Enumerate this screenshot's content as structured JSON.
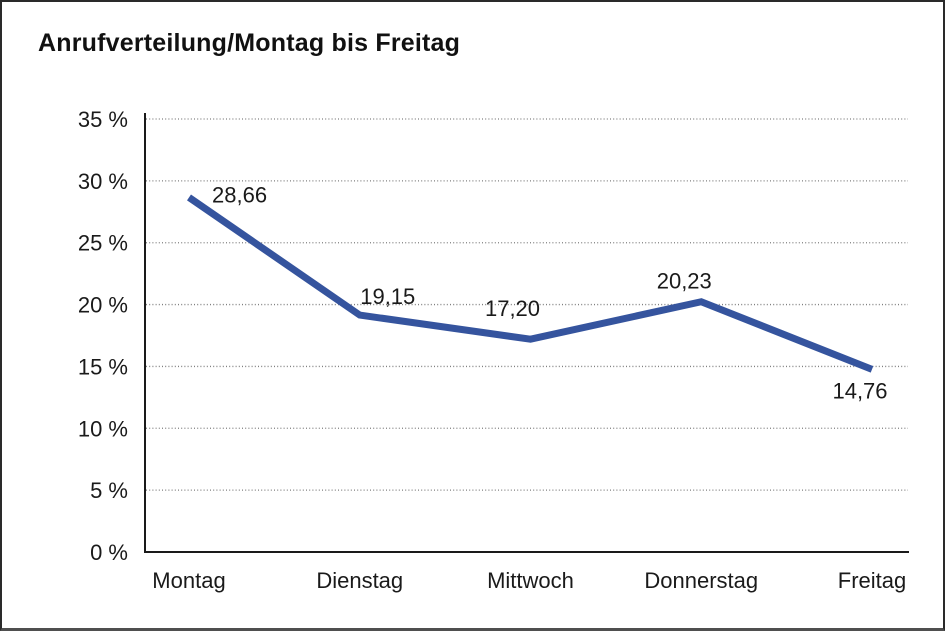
{
  "chart_data": {
    "type": "line",
    "title": "Anrufverteilung/Montag bis Freitag",
    "categories": [
      "Montag",
      "Dienstag",
      "Mittwoch",
      "Donnerstag",
      "Freitag"
    ],
    "values": [
      28.66,
      19.15,
      17.2,
      20.23,
      14.76
    ],
    "value_labels": [
      "28,66",
      "19,15",
      "17,20",
      "20,23",
      "14,76"
    ],
    "xlabel": "",
    "ylabel": "",
    "ylim": [
      0,
      35
    ],
    "y_tick_step": 5,
    "y_tick_labels": [
      "0 %",
      "5 %",
      "10 %",
      "15 %",
      "20 %",
      "25 %",
      "30 %",
      "35 %"
    ],
    "grid": "horizontal dotted",
    "legend": "none",
    "line_color": "#35549E",
    "axis_color": "#1a1a1a",
    "gridline_color": "#7f7f7f",
    "text_color": "#1a1a1a",
    "background_color": "#ffffff"
  }
}
